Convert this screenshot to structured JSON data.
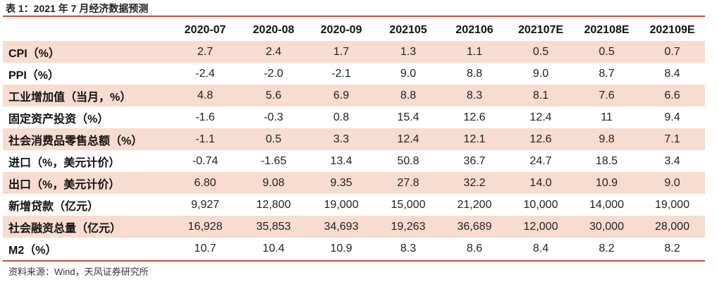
{
  "title": "表 1：2021 年 7 月经济数据预测",
  "table": {
    "headers": [
      "",
      "2020-07",
      "2020-08",
      "2020-09",
      "202105",
      "202106",
      "202107E",
      "202108E",
      "202109E"
    ],
    "rows": [
      {
        "label": "CPI（%）",
        "values": [
          "2.7",
          "2.4",
          "1.7",
          "1.3",
          "1.1",
          "0.5",
          "0.5",
          "0.7"
        ]
      },
      {
        "label": "PPI（%）",
        "values": [
          "-2.4",
          "-2.0",
          "-2.1",
          "9.0",
          "8.8",
          "9.0",
          "8.7",
          "8.4"
        ]
      },
      {
        "label": "工业增加值（当月，%）",
        "values": [
          "4.8",
          "5.6",
          "6.9",
          "8.8",
          "8.3",
          "8.1",
          "7.6",
          "6.6"
        ]
      },
      {
        "label": "固定资产投资（%）",
        "values": [
          "-1.6",
          "-0.3",
          "0.8",
          "15.4",
          "12.6",
          "12.4",
          "11",
          "9.4"
        ]
      },
      {
        "label": "社会消费品零售总额（%）",
        "values": [
          "-1.1",
          "0.5",
          "3.3",
          "12.4",
          "12.1",
          "12.6",
          "9.8",
          "7.1"
        ]
      },
      {
        "label": "进口（%，美元计价）",
        "values": [
          "-0.74",
          "-1.65",
          "13.4",
          "50.8",
          "36.7",
          "24.7",
          "18.5",
          "3.4"
        ]
      },
      {
        "label": "出口（%，美元计价）",
        "values": [
          "6.80",
          "9.08",
          "9.35",
          "27.8",
          "32.2",
          "14.0",
          "10.9",
          "9.0"
        ]
      },
      {
        "label": "新增贷款（亿元）",
        "values": [
          "9,927",
          "12,800",
          "19,000",
          "15,000",
          "21,200",
          "10,000",
          "14,000",
          "19,000"
        ]
      },
      {
        "label": "社会融资总量（亿元）",
        "values": [
          "16,928",
          "35,853",
          "34,693",
          "19,263",
          "36,689",
          "12,000",
          "30,000",
          "28,000"
        ]
      },
      {
        "label": "M2（%）",
        "values": [
          "10.7",
          "10.4",
          "10.9",
          "8.3",
          "8.6",
          "8.4",
          "8.2",
          "8.2"
        ]
      }
    ]
  },
  "source": "资料来源：Wind，天风证券研究所",
  "colors": {
    "accent_rule": "#c0503a",
    "row_shade": "#f8dccf"
  }
}
